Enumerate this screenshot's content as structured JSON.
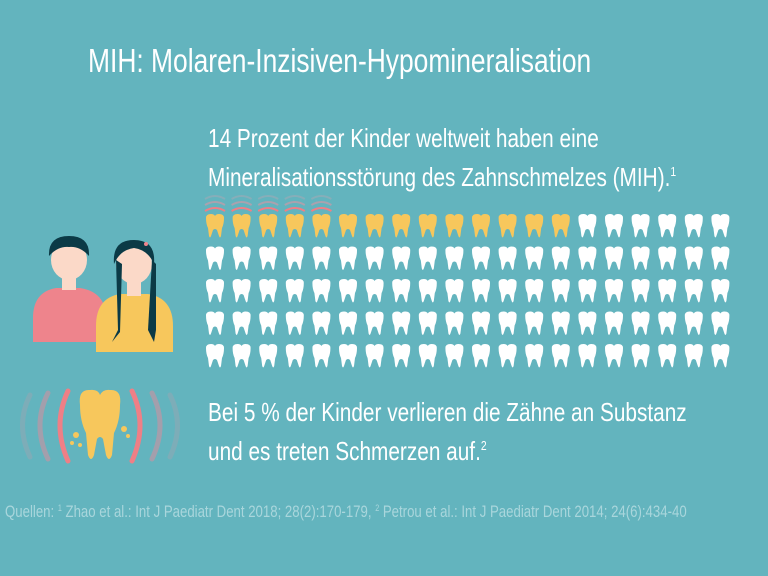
{
  "title": "MIH: Molaren-Inzisiven-Hypomineralisation",
  "stat1": {
    "line1": "14 Prozent der Kinder weltweit haben eine",
    "line2": "Mineralisationsstörung des Zahnschmelzes (MIH).",
    "footnote": "1"
  },
  "stat2": {
    "line1": "Bei 5 % der Kinder verlieren die Zähne an Substanz",
    "line2": "und es treten Schmerzen auf.",
    "footnote": "2"
  },
  "sources": {
    "prefix": "Quellen: ",
    "ref1_mark": "1",
    "ref1": " Zhao et al.: Int J Paediatr Dent 2018; 28(2):170-179, ",
    "ref2_mark": "2",
    "ref2": " Petrou et al.: Int J Paediatr Dent 2014; 24(6):434-40"
  },
  "pictogram": {
    "total": 100,
    "affected_mih": 14,
    "with_pain": 5,
    "columns": 20
  },
  "colors": {
    "background": "#63b4be",
    "affected": "#f7c75c",
    "healthy": "#ffffff",
    "pain": "#ef7f86"
  }
}
